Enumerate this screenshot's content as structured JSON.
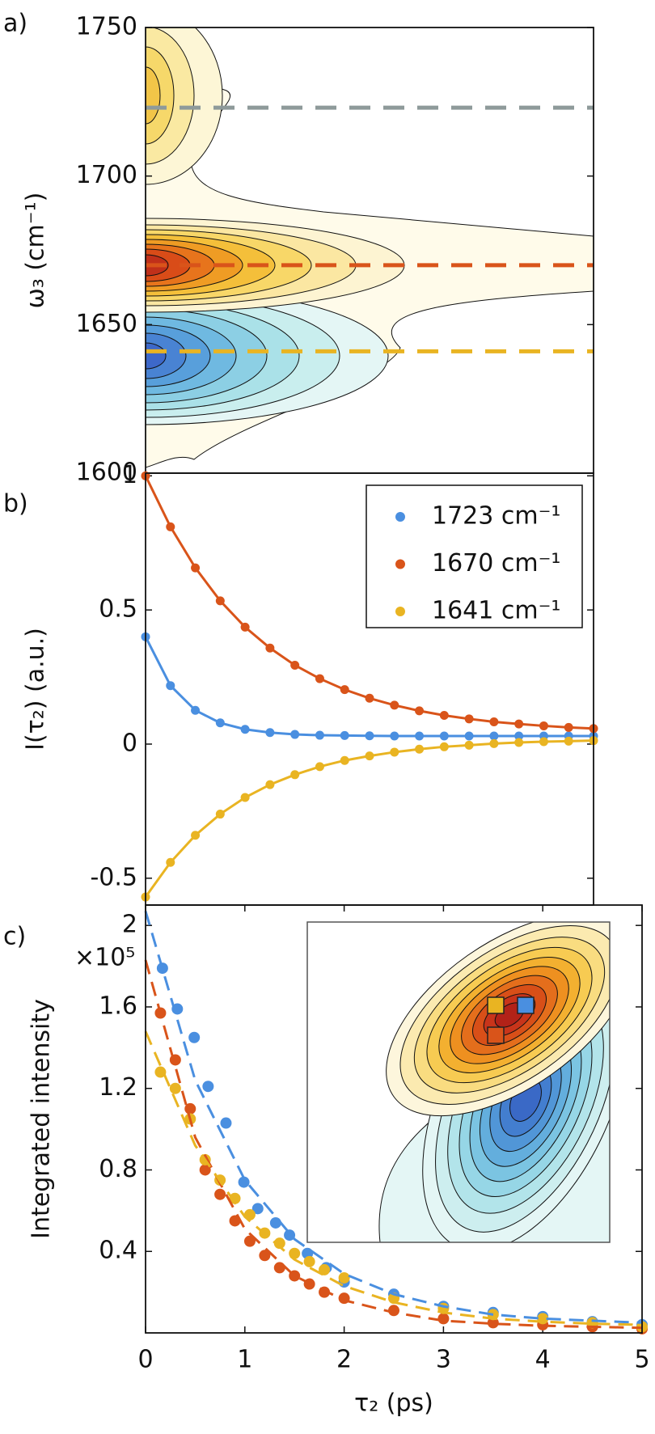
{
  "chart_data": [
    {
      "type": "contour",
      "label": "a)",
      "ylabel": "ω₃ (cm⁻¹)",
      "xlim": [
        0,
        4.5
      ],
      "ylim": [
        1600,
        1750
      ],
      "yticks": [
        1600,
        1650,
        1700,
        1750
      ],
      "hlines": [
        {
          "value": 1723,
          "color": "#8e9a9a"
        },
        {
          "value": 1670,
          "color": "#d9541a"
        },
        {
          "value": 1641,
          "color": "#e9b422"
        }
      ]
    },
    {
      "type": "line",
      "label": "b)",
      "ylabel": "I(τ₂) (a.u.)",
      "xlim": [
        0,
        4.5
      ],
      "ylim": [
        -0.6,
        1.01
      ],
      "yticks": [
        -0.5,
        0,
        0.5,
        1
      ],
      "legend": "upper right",
      "x": [
        0,
        0.25,
        0.5,
        0.75,
        1,
        1.25,
        1.5,
        1.75,
        2,
        2.25,
        2.5,
        2.75,
        3,
        3.25,
        3.5,
        3.75,
        4,
        4.25,
        4.5
      ],
      "series": [
        {
          "name": "1723 cm⁻¹",
          "color": "#4a8fe0",
          "values": [
            0.4,
            0.218,
            0.126,
            0.079,
            0.055,
            0.043,
            0.036,
            0.033,
            0.032,
            0.031,
            0.03,
            0.03,
            0.03,
            0.03,
            0.03,
            0.03,
            0.03,
            0.03,
            0.03
          ]
        },
        {
          "name": "1670 cm⁻¹",
          "color": "#d9541a",
          "values": [
            1,
            0.81,
            0.657,
            0.534,
            0.436,
            0.358,
            0.294,
            0.244,
            0.203,
            0.171,
            0.145,
            0.124,
            0.107,
            0.094,
            0.083,
            0.075,
            0.068,
            0.062,
            0.058
          ]
        },
        {
          "name": "1641 cm⁻¹",
          "color": "#e9b422",
          "values": [
            -0.57,
            -0.441,
            -0.34,
            -0.261,
            -0.199,
            -0.151,
            -0.114,
            -0.084,
            -0.061,
            -0.044,
            -0.03,
            -0.019,
            -0.01,
            -0.004,
            0.002,
            0.006,
            0.009,
            0.011,
            0.013
          ]
        }
      ]
    },
    {
      "type": "scatter",
      "label": "c)",
      "ylabel": "Integrated intensity",
      "xlabel": "τ₂ (ps)",
      "scale_label": "×10⁵",
      "xlim": [
        0,
        5
      ],
      "xticks": [
        0,
        1,
        2,
        3,
        4,
        5
      ],
      "ylim": [
        0,
        2.1
      ],
      "yticks": [
        0.4,
        0.8,
        1.2,
        1.6,
        2
      ],
      "series": [
        {
          "color": "#4a8fe0",
          "x": [
            0.17,
            0.32,
            0.49,
            0.63,
            0.81,
            0.99,
            1.13,
            1.31,
            1.45,
            1.63,
            1.82,
            2,
            2.5,
            3,
            3.5,
            4,
            4.5,
            5
          ],
          "values": [
            1.79,
            1.59,
            1.45,
            1.21,
            1.03,
            0.74,
            0.61,
            0.54,
            0.48,
            0.39,
            0.32,
            0.25,
            0.19,
            0.13,
            0.1,
            0.08,
            0.055,
            0.04
          ]
        },
        {
          "color": "#d9541a",
          "x": [
            0.15,
            0.3,
            0.45,
            0.6,
            0.75,
            0.9,
            1.05,
            1.2,
            1.35,
            1.5,
            1.65,
            1.8,
            2,
            2.5,
            3,
            3.5,
            4,
            4.5,
            5
          ],
          "values": [
            1.57,
            1.34,
            1.1,
            0.8,
            0.68,
            0.55,
            0.45,
            0.38,
            0.32,
            0.28,
            0.24,
            0.2,
            0.17,
            0.11,
            0.07,
            0.05,
            0.04,
            0.03,
            0.02
          ]
        },
        {
          "color": "#e9b422",
          "x": [
            0.15,
            0.3,
            0.45,
            0.6,
            0.75,
            0.9,
            1.05,
            1.2,
            1.35,
            1.5,
            1.65,
            1.8,
            2,
            2.5,
            3,
            3.5,
            4,
            4.5,
            5
          ],
          "values": [
            1.28,
            1.2,
            1.05,
            0.85,
            0.75,
            0.66,
            0.58,
            0.49,
            0.44,
            0.39,
            0.35,
            0.31,
            0.27,
            0.17,
            0.12,
            0.09,
            0.07,
            0.05,
            0.03
          ]
        },
        {
          "color": "#4a8fe0",
          "style": "dashed",
          "x": [
            0,
            0.5,
            1,
            1.5,
            2,
            2.5,
            3,
            3.5,
            4,
            4.5,
            5
          ],
          "values": [
            2.07,
            1.24,
            0.75,
            0.46,
            0.29,
            0.19,
            0.13,
            0.09,
            0.07,
            0.06,
            0.05
          ]
        },
        {
          "color": "#d9541a",
          "style": "dashed",
          "x": [
            0,
            0.5,
            1,
            1.5,
            2,
            2.5,
            3,
            3.5,
            4,
            4.5,
            5
          ],
          "values": [
            1.83,
            0.96,
            0.51,
            0.28,
            0.16,
            0.1,
            0.06,
            0.045,
            0.035,
            0.03,
            0.025
          ]
        },
        {
          "color": "#e9b422",
          "style": "dashed",
          "x": [
            0,
            0.5,
            1,
            1.5,
            2,
            2.5,
            3,
            3.5,
            4,
            4.5,
            5
          ],
          "values": [
            1.48,
            0.92,
            0.57,
            0.36,
            0.23,
            0.15,
            0.1,
            0.07,
            0.055,
            0.045,
            0.04
          ]
        }
      ]
    }
  ]
}
